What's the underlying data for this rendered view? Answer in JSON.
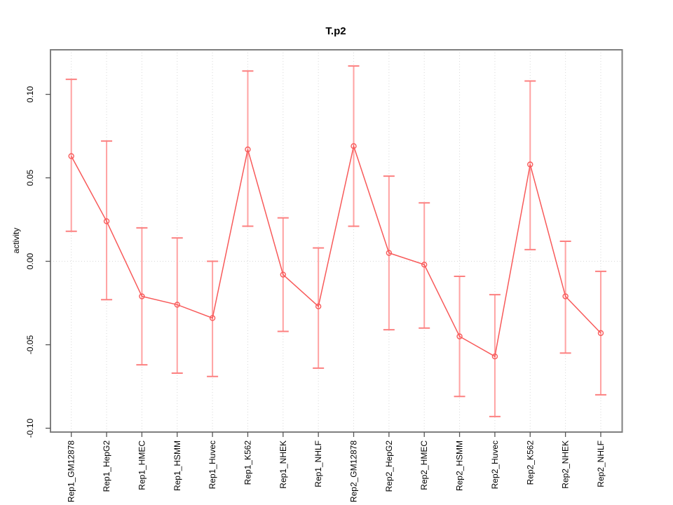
{
  "chart_data": {
    "type": "line",
    "title": "T.p2",
    "xlabel": "",
    "ylabel": "activity",
    "grid": "dotted vertical gridline per category, dotted horizontal line at y=0",
    "legend_position": "none",
    "point_marker": "open-circle",
    "categories": [
      "Rep1_GM12878",
      "Rep1_HepG2",
      "Rep1_HMEC",
      "Rep1_HSMM",
      "Rep1_Huvec",
      "Rep1_K562",
      "Rep1_NHEK",
      "Rep1_NHLF",
      "Rep2_GM12878",
      "Rep2_HepG2",
      "Rep2_HMEC",
      "Rep2_HSMM",
      "Rep2_Huvec",
      "Rep2_K562",
      "Rep2_NHEK",
      "Rep2_NHLF"
    ],
    "series": [
      {
        "name": "T.p2 activity",
        "values": [
          0.063,
          0.024,
          -0.021,
          -0.026,
          -0.034,
          0.067,
          -0.008,
          -0.027,
          0.069,
          0.005,
          -0.002,
          -0.045,
          -0.057,
          0.058,
          -0.021,
          -0.043
        ],
        "err_low": [
          0.018,
          -0.023,
          -0.062,
          -0.067,
          -0.069,
          0.021,
          -0.042,
          -0.064,
          0.021,
          -0.041,
          -0.04,
          -0.081,
          -0.093,
          0.007,
          -0.055,
          -0.08
        ],
        "err_high": [
          0.109,
          0.072,
          0.02,
          0.014,
          0.0,
          0.114,
          0.026,
          0.008,
          0.117,
          0.051,
          0.035,
          -0.009,
          -0.02,
          0.108,
          0.012,
          -0.006
        ]
      }
    ],
    "yticks": [
      {
        "v": -0.1,
        "label": "-0.10"
      },
      {
        "v": -0.05,
        "label": "-0.05"
      },
      {
        "v": 0.0,
        "label": "0.00"
      },
      {
        "v": 0.05,
        "label": "0.05"
      },
      {
        "v": 0.1,
        "label": "0.10"
      }
    ],
    "ylim": [
      -0.1023,
      0.1267
    ],
    "colors": {
      "line": "#F85A5A",
      "marker": "#F85A5A",
      "error_bar": "#FFA2A2",
      "error_cap": "#FC8080",
      "gridline": "#D8D8D8",
      "frame": "#7F7F7F",
      "tick": "#555555",
      "text": "#000000"
    }
  }
}
